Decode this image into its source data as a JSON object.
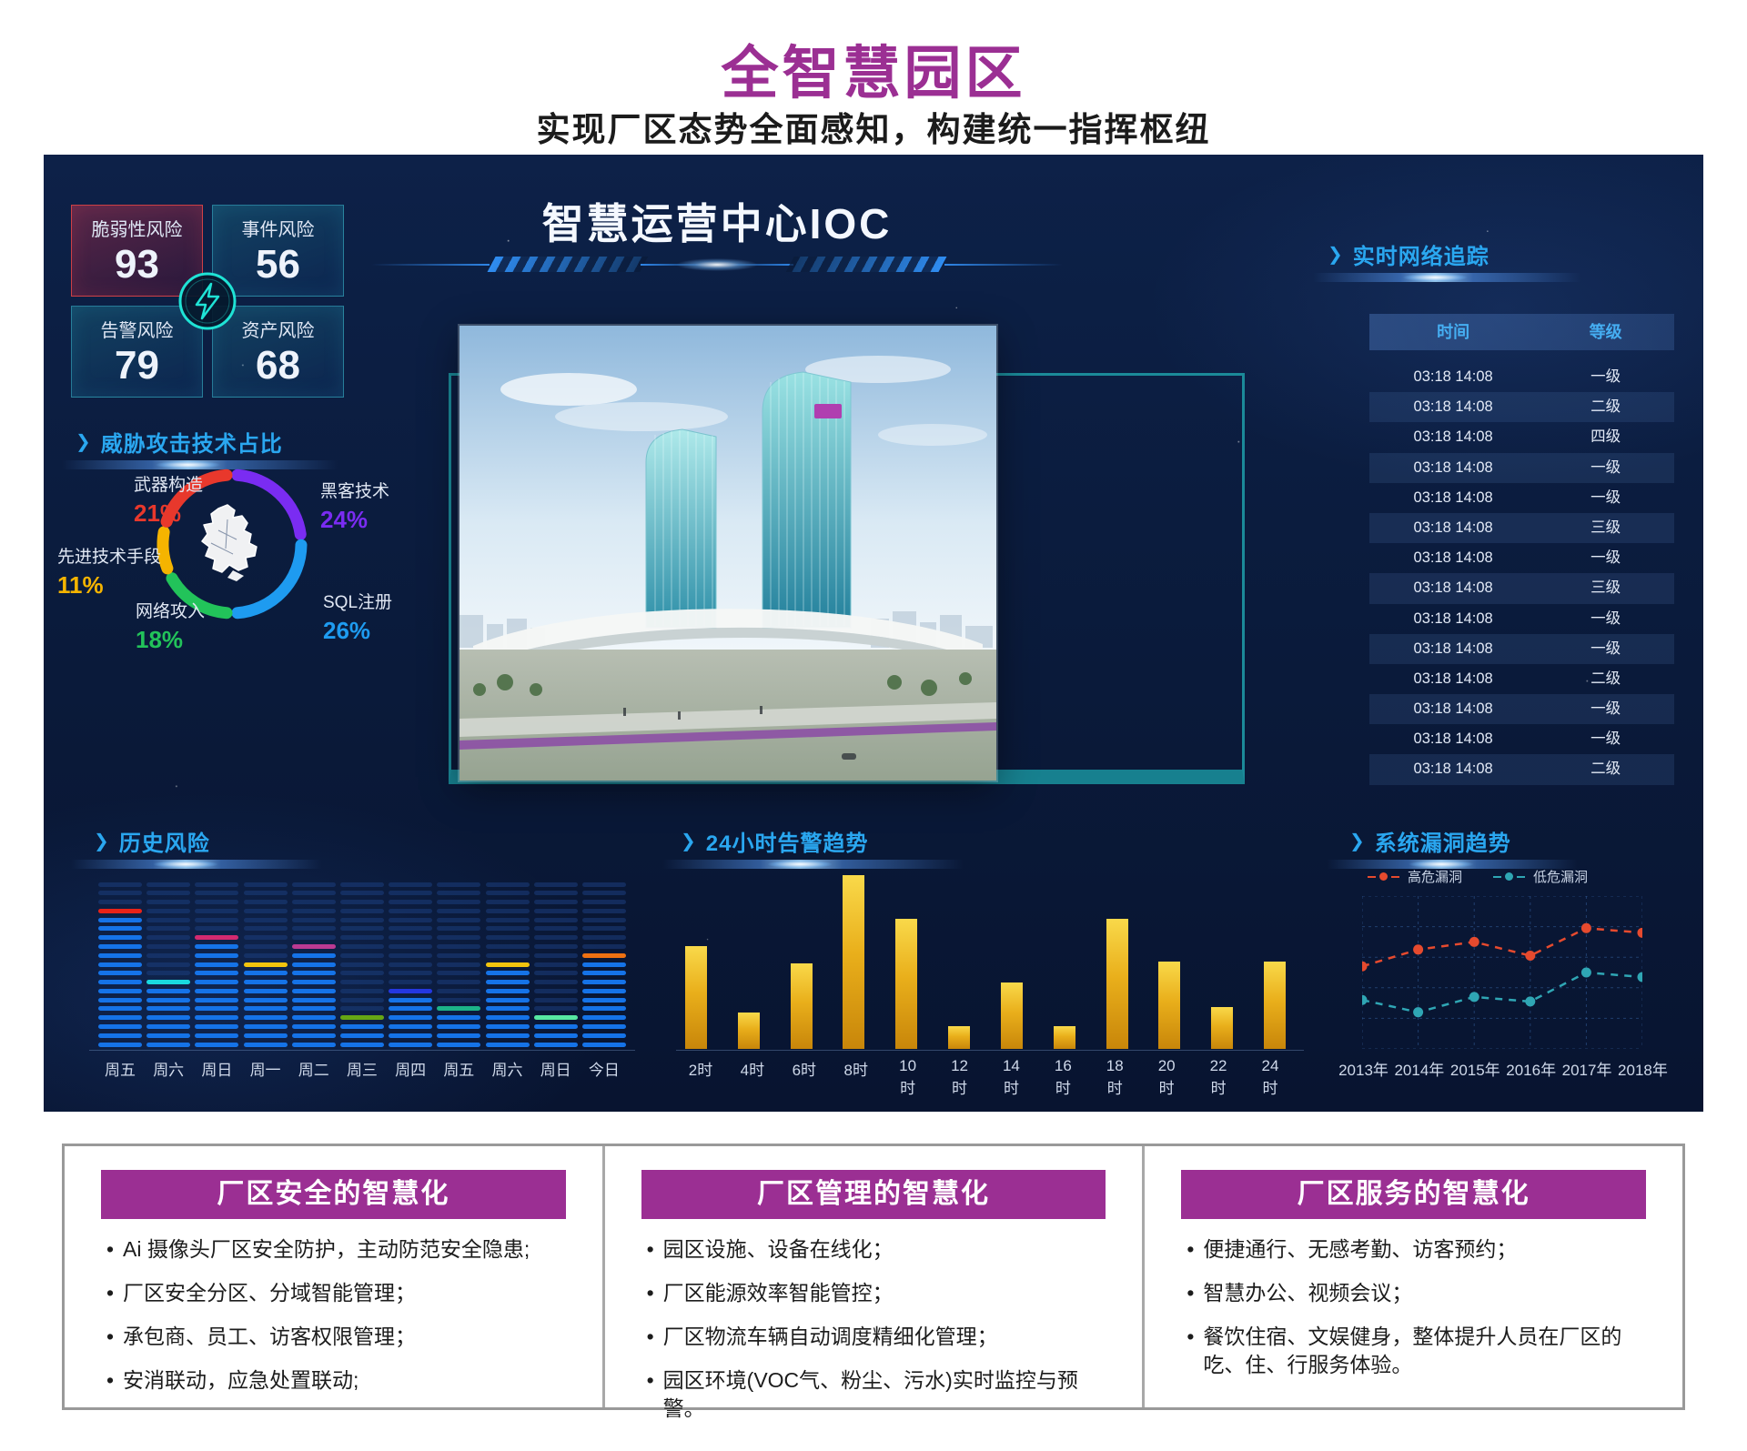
{
  "header": {
    "title": "全智慧园区",
    "subtitle": "实现厂区态势全面感知，构建统一指挥枢纽"
  },
  "dashboard": {
    "title": "智慧运营中心IOC",
    "risk_cards": [
      {
        "label": "脆弱性风险",
        "value": "93"
      },
      {
        "label": "事件风险",
        "value": "56"
      },
      {
        "label": "告警风险",
        "value": "79"
      },
      {
        "label": "资产风险",
        "value": "68"
      }
    ],
    "sections": {
      "threat_title": "威胁攻击技术占比",
      "network_title": "实时网络追踪",
      "history_title": "历史风险",
      "alarm_title": "24小时告警趋势",
      "vuln_title": "系统漏洞趋势"
    },
    "network_table": {
      "columns": [
        "时间",
        "等级"
      ],
      "rows": [
        {
          "time": "03:18 14:08",
          "level": "一级"
        },
        {
          "time": "03:18 14:08",
          "level": "二级"
        },
        {
          "time": "03:18 14:08",
          "level": "四级"
        },
        {
          "time": "03:18 14:08",
          "level": "一级"
        },
        {
          "time": "03:18 14:08",
          "level": "一级"
        },
        {
          "time": "03:18 14:08",
          "level": "三级"
        },
        {
          "time": "03:18 14:08",
          "level": "一级"
        },
        {
          "time": "03:18 14:08",
          "level": "三级"
        },
        {
          "time": "03:18 14:08",
          "level": "一级"
        },
        {
          "time": "03:18 14:08",
          "level": "一级"
        },
        {
          "time": "03:18 14:08",
          "level": "二级"
        },
        {
          "time": "03:18 14:08",
          "level": "一级"
        },
        {
          "time": "03:18 14:08",
          "level": "一级"
        },
        {
          "time": "03:18 14:08",
          "level": "二级"
        }
      ]
    }
  },
  "chart_data": [
    {
      "type": "pie",
      "title": "威胁攻击技术占比",
      "segments": [
        {
          "label": "黑客技术",
          "pct": 24,
          "color": "#7a2cf2",
          "pos": "tr"
        },
        {
          "label": "SQL注册",
          "pct": 26,
          "color": "#1e9bf0",
          "pos": "br"
        },
        {
          "label": "网络攻入",
          "pct": 18,
          "color": "#22c35a",
          "pos": "bl"
        },
        {
          "label": "先进技术手段",
          "pct": 11,
          "color": "#f5b400",
          "pos": "ml"
        },
        {
          "label": "武器构造",
          "pct": 21,
          "color": "#e8382c",
          "pos": "tl"
        }
      ]
    },
    {
      "type": "bar",
      "title": "历史风险",
      "categories": [
        "周五",
        "周六",
        "周日",
        "周一",
        "周二",
        "周三",
        "周四",
        "周五",
        "周六",
        "周日",
        "今日"
      ],
      "values": [
        15,
        7,
        12,
        9,
        11,
        3,
        6,
        4,
        9,
        3,
        10
      ],
      "cap_colors": [
        "#e82318",
        "#1ad9df",
        "#d42a70",
        "#f2c40e",
        "#bb3a92",
        "#66a614",
        "#2437e0",
        "#1cb488",
        "#f2c40e",
        "#57e8a2",
        "#ee7112"
      ],
      "max_rows": 19,
      "bar_color": "#1573e8"
    },
    {
      "type": "bar",
      "title": "24小时告警趋势",
      "categories": [
        "2时",
        "4时",
        "6时",
        "8时",
        "10时",
        "12时",
        "14时",
        "16时",
        "18时",
        "20时",
        "22时",
        "24时"
      ],
      "values": [
        59,
        21,
        49,
        100,
        75,
        13,
        38,
        13,
        75,
        50,
        24,
        50
      ],
      "ylim": [
        0,
        100
      ],
      "bar_color": "#e9b41c"
    },
    {
      "type": "line",
      "title": "系统漏洞趋势",
      "x": [
        "2013年",
        "2014年",
        "2015年",
        "2016年",
        "2017年",
        "2018年"
      ],
      "series": [
        {
          "name": "高危漏洞",
          "color": "#e64a2e",
          "values": [
            54,
            65,
            70,
            61,
            79,
            76
          ]
        },
        {
          "name": "低危漏洞",
          "color": "#2fa6b4",
          "values": [
            32,
            24,
            34,
            31,
            50,
            47
          ]
        }
      ],
      "ylim": [
        0,
        100
      ],
      "grid": "dashed",
      "legend_position": "top-right"
    }
  ],
  "cards": [
    {
      "title": "厂区安全的智慧化",
      "bullets": [
        "Ai 摄像头厂区安全防护，主动防范安全隐患;",
        "厂区安全分区、分域智能管理；",
        "承包商、员工、访客权限管理；",
        "安消联动，应急处置联动;"
      ]
    },
    {
      "title": "厂区管理的智慧化",
      "bullets": [
        "园区设施、设备在线化；",
        "厂区能源效率智能管控；",
        "厂区物流车辆自动调度精细化管理；",
        "园区环境(VOC气、粉尘、污水)实时监控与预警。"
      ]
    },
    {
      "title": "厂区服务的智慧化",
      "bullets": [
        "便捷通行、无感考勤、访客预约；",
        "智慧办公、视频会议；",
        "餐饮住宿、文娱健身，整体提升人员在厂区的吃、住、行服务体验。"
      ]
    }
  ],
  "colors": {
    "brand_purple": "#9b2f93",
    "panel_navy": "#0a1a3a",
    "accent_blue": "#2aa7f0",
    "gold_bar": "#e9b41c",
    "teal_frame": "#1b8a99"
  }
}
